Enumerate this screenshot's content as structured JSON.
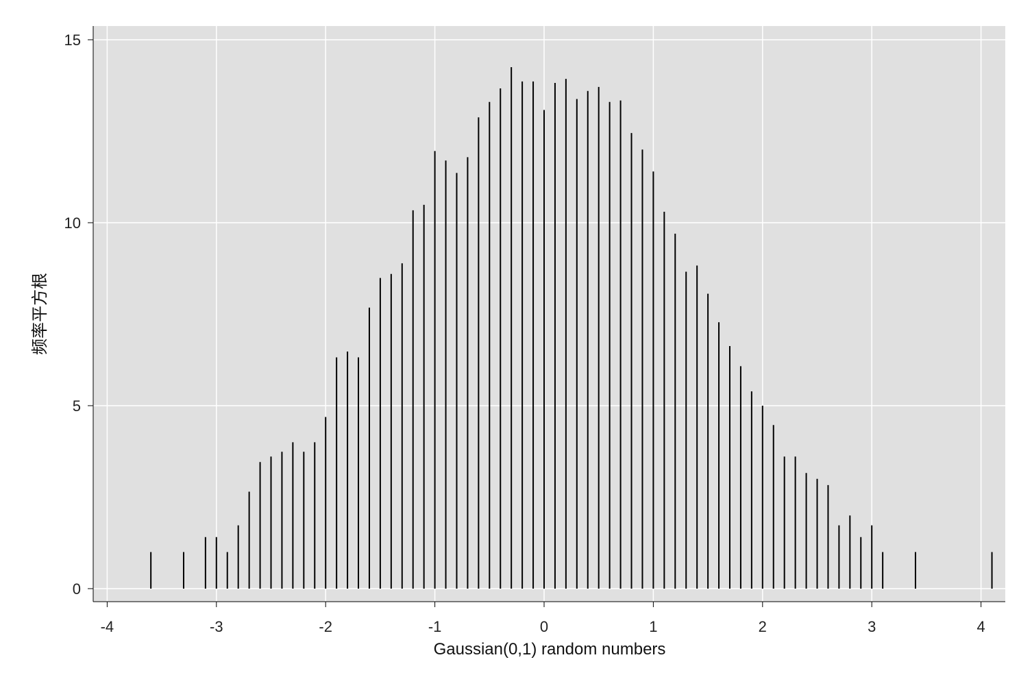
{
  "chart_data": {
    "type": "spike",
    "title": "",
    "xlabel": "Gaussian(0,1) random numbers",
    "ylabel": "频率平方根",
    "xlim": [
      -4,
      4.2
    ],
    "ylim": [
      0,
      15
    ],
    "xticks": [
      -4,
      -3,
      -2,
      -1,
      0,
      1,
      2,
      3,
      4
    ],
    "yticks": [
      0,
      5,
      10,
      15
    ],
    "grid": true,
    "background": "#e0e0e0",
    "spike_color": "#000000",
    "x": [
      -3.6,
      -3.3,
      -3.1,
      -3.0,
      -2.9,
      -2.8,
      -2.7,
      -2.6,
      -2.5,
      -2.4,
      -2.3,
      -2.2,
      -2.1,
      -2.0,
      -1.9,
      -1.8,
      -1.7,
      -1.6,
      -1.5,
      -1.4,
      -1.3,
      -1.2,
      -1.1,
      -1.0,
      -0.9,
      -0.8,
      -0.7,
      -0.6,
      -0.5,
      -0.4,
      -0.3,
      -0.2,
      -0.1,
      0.0,
      0.1,
      0.2,
      0.3,
      0.4,
      0.5,
      0.6,
      0.7,
      0.8,
      0.9,
      1.0,
      1.1,
      1.2,
      1.3,
      1.4,
      1.5,
      1.6,
      1.7,
      1.8,
      1.9,
      2.0,
      2.1,
      2.2,
      2.3,
      2.4,
      2.5,
      2.6,
      2.7,
      2.8,
      2.9,
      3.0,
      3.1,
      3.4,
      4.1
    ],
    "y": [
      1.0,
      1.0,
      1.41,
      1.41,
      1.0,
      1.73,
      2.65,
      3.46,
      3.61,
      3.74,
      4.0,
      3.74,
      4.0,
      4.69,
      6.32,
      6.48,
      6.32,
      7.68,
      8.49,
      8.6,
      8.89,
      10.34,
      10.49,
      11.96,
      11.7,
      11.36,
      11.79,
      12.88,
      13.3,
      13.67,
      14.25,
      13.86,
      13.86,
      13.08,
      13.82,
      13.93,
      13.38,
      13.6,
      13.71,
      13.3,
      13.34,
      12.45,
      12.0,
      11.4,
      10.3,
      9.7,
      8.66,
      8.83,
      8.06,
      7.28,
      6.63,
      6.08,
      5.39,
      5.0,
      4.47,
      3.61,
      3.61,
      3.16,
      3.0,
      2.83,
      1.73,
      2.0,
      1.41,
      1.73,
      1.0,
      1.0,
      1.0
    ]
  }
}
